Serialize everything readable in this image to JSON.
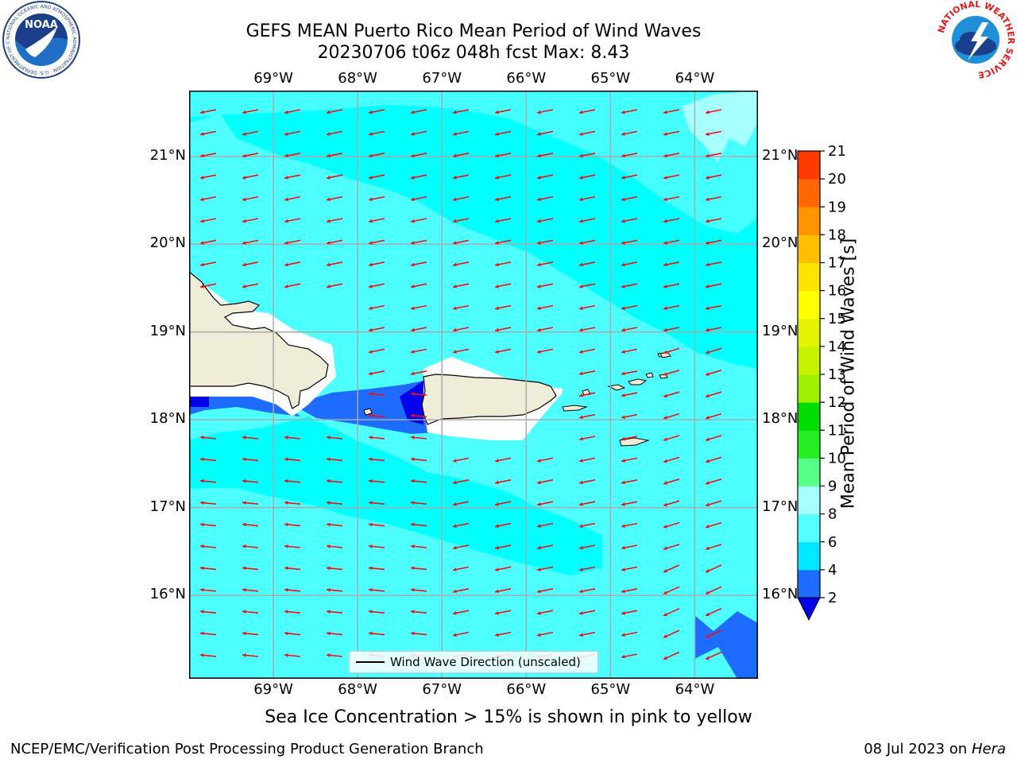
{
  "header": {
    "title_line1": "GEFS MEAN Puerto Rico Mean Period of Wind Waves",
    "title_line2": "20230706 t06z 048h fcst   Max: 8.43"
  },
  "logos": {
    "left": {
      "name": "NOAA",
      "text": "NOAA",
      "ring_text": "NATIONAL OCEANIC AND ATMOSPHERIC ADMINISTRATION · U.S. DEPARTMENT OF COMMERCE"
    },
    "right": {
      "name": "National Weather Service",
      "ring_text": "NATIONAL WEATHER SERVICE"
    }
  },
  "map": {
    "lon_ticks": [
      "69°W",
      "68°W",
      "67°W",
      "66°W",
      "65°W",
      "64°W"
    ],
    "lat_ticks": [
      "21°N",
      "20°N",
      "19°N",
      "18°N",
      "17°N",
      "16°N"
    ],
    "lon_values": [
      -69,
      -68,
      -67,
      -66,
      -65,
      -64
    ],
    "lat_values": [
      21,
      20,
      19,
      18,
      17,
      16
    ],
    "extent": {
      "lon": [
        -70,
        -63.25
      ],
      "lat": [
        15.05,
        21.75
      ]
    },
    "legend_label": "Wind Wave Direction (unscaled)",
    "arrow_color": "#ee1111",
    "land_color": "#efedd8",
    "gridlines": true
  },
  "colorbar": {
    "label": "Mean Period of Wind Waves [s]",
    "tick_labels": [
      "21",
      "20",
      "19",
      "18",
      "17",
      "16",
      "15",
      "14",
      "13",
      "12",
      "11",
      "10",
      "9",
      "8",
      "6",
      "4",
      "2"
    ],
    "levels": [
      2,
      4,
      6,
      8,
      9,
      10,
      11,
      12,
      13,
      14,
      15,
      16,
      17,
      18,
      19,
      20,
      21
    ],
    "colors": [
      "#1e6cff",
      "#00e8ff",
      "#54ffff",
      "#a8ffff",
      "#55ff88",
      "#22ee22",
      "#00dd00",
      "#9ef000",
      "#c6f400",
      "#e4f400",
      "#ffff00",
      "#ffe400",
      "#ffbe00",
      "#ff9400",
      "#ff6800",
      "#ff3a00",
      "#ff0000"
    ],
    "under_color": "#0000ee"
  },
  "caption": "Sea Ice Concentration > 15% is shown in pink to yellow",
  "footer": {
    "left": "NCEP/EMC/Verification Post Processing Product Generation Branch",
    "right_prefix": "08 Jul 2023 on ",
    "right_machine": "Hera"
  }
}
